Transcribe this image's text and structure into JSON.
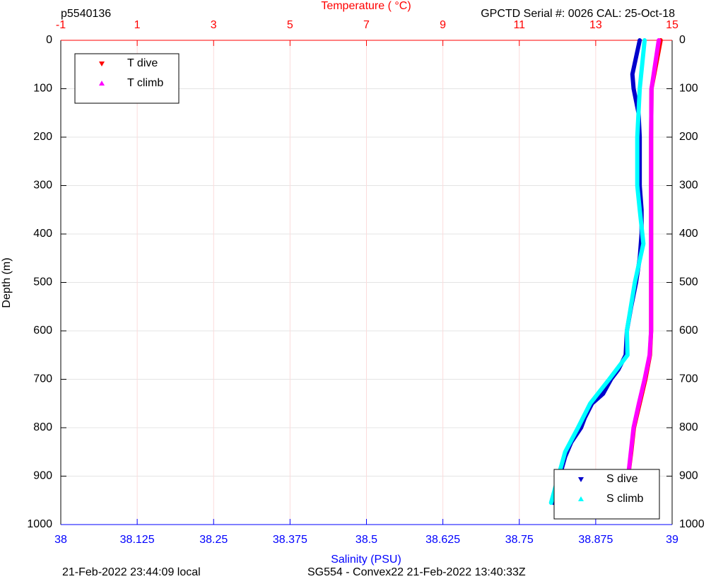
{
  "chart_data": {
    "type": "line",
    "title_left": "p5540136",
    "title_right": "GPCTD Serial #: 0026 CAL: 25-Oct-18",
    "x2label": "Temperature (   °C)",
    "xlabel": "Salinity (PSU)",
    "ylabel": "Depth (m)",
    "footer_left": "21-Feb-2022 23:44:09 local",
    "footer_right": "SG554 - Convex22 21-Feb-2022 13:40:33Z",
    "ylim": [
      0,
      1000
    ],
    "yreverse": true,
    "yticks": [
      0,
      100,
      200,
      300,
      400,
      500,
      600,
      700,
      800,
      900,
      1000
    ],
    "xlim": [
      38,
      39
    ],
    "xticks": [
      38,
      38.125,
      38.25,
      38.375,
      38.5,
      38.625,
      38.75,
      38.875,
      39
    ],
    "x2lim": [
      -1,
      15
    ],
    "x2ticks": [
      -1,
      1,
      3,
      5,
      7,
      9,
      11,
      13,
      15
    ],
    "grid": true,
    "series": [
      {
        "name": "S dive",
        "color": "#0000cc",
        "axis": "x",
        "marker": "down",
        "legend": "southeast",
        "y": [
          0,
          70,
          100,
          150,
          200,
          300,
          350,
          400,
          450,
          500,
          550,
          600,
          650,
          680,
          700,
          730,
          750,
          780,
          800,
          830,
          860,
          900,
          955
        ],
        "x": [
          38.947,
          38.935,
          38.937,
          38.945,
          38.947,
          38.947,
          38.95,
          38.95,
          38.947,
          38.941,
          38.933,
          38.926,
          38.924,
          38.912,
          38.9,
          38.887,
          38.869,
          38.857,
          38.851,
          38.835,
          38.825,
          38.816,
          38.806
        ]
      },
      {
        "name": "S climb",
        "color": "#00ffff",
        "axis": "x",
        "marker": "up",
        "legend": "southeast",
        "y": [
          0,
          100,
          150,
          200,
          300,
          350,
          420,
          500,
          600,
          650,
          700,
          750,
          800,
          850,
          900,
          955
        ],
        "x": [
          38.955,
          38.947,
          38.945,
          38.943,
          38.943,
          38.947,
          38.953,
          38.939,
          38.926,
          38.927,
          38.897,
          38.866,
          38.846,
          38.825,
          38.814,
          38.802
        ]
      },
      {
        "name": "T dive",
        "color": "#ff0000",
        "axis": "x2",
        "marker": "down",
        "legend": "northwest",
        "y": [
          0,
          100,
          200,
          300,
          400,
          500,
          600,
          650,
          700,
          750,
          800,
          850,
          900,
          955
        ],
        "x": [
          14.7,
          14.46,
          14.45,
          14.45,
          14.45,
          14.45,
          14.45,
          14.42,
          14.3,
          14.15,
          14.0,
          13.93,
          13.85,
          13.78
        ]
      },
      {
        "name": "T climb",
        "color": "#ff00ff",
        "axis": "x2",
        "marker": "up",
        "legend": "northwest",
        "y": [
          0,
          100,
          200,
          300,
          400,
          500,
          600,
          650,
          700,
          750,
          800,
          850,
          900,
          955
        ],
        "x": [
          14.65,
          14.46,
          14.45,
          14.45,
          14.45,
          14.45,
          14.45,
          14.41,
          14.28,
          14.13,
          13.99,
          13.92,
          13.85,
          13.8
        ]
      }
    ]
  }
}
